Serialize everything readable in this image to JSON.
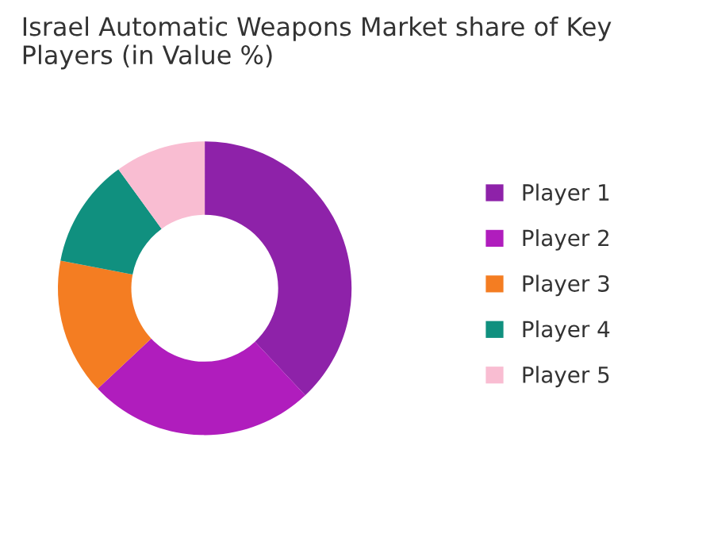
{
  "chart_data": {
    "type": "donut",
    "title": "Israel Automatic Weapons Market share of Key Players (in Value %)",
    "categories": [
      "Player 1",
      "Player 2",
      "Player 3",
      "Player 4",
      "Player 5"
    ],
    "values": [
      38,
      25,
      15,
      12,
      10
    ],
    "colors": [
      "#8e22a9",
      "#b01dbd",
      "#f47d22",
      "#10907f",
      "#f9bdd2"
    ],
    "legend": "right"
  }
}
